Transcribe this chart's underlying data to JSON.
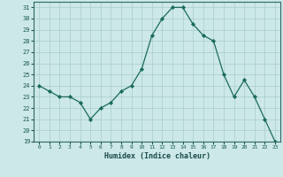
{
  "x": [
    0,
    1,
    2,
    3,
    4,
    5,
    6,
    7,
    8,
    9,
    10,
    11,
    12,
    13,
    14,
    15,
    16,
    17,
    18,
    19,
    20,
    21,
    22,
    23
  ],
  "y": [
    24,
    23.5,
    23,
    23,
    22.5,
    21,
    22,
    22.5,
    23.5,
    24,
    25.5,
    28.5,
    30,
    31,
    31,
    29.5,
    28.5,
    28,
    25,
    23,
    24.5,
    23,
    21,
    19
  ],
  "xlabel": "Humidex (Indice chaleur)",
  "xlim": [
    -0.5,
    23.5
  ],
  "ylim": [
    19,
    31.5
  ],
  "yticks": [
    19,
    20,
    21,
    22,
    23,
    24,
    25,
    26,
    27,
    28,
    29,
    30,
    31
  ],
  "xticks": [
    0,
    1,
    2,
    3,
    4,
    5,
    6,
    7,
    8,
    9,
    10,
    11,
    12,
    13,
    14,
    15,
    16,
    17,
    18,
    19,
    20,
    21,
    22,
    23
  ],
  "line_color": "#1a6b5a",
  "marker_color": "#1a6b5a",
  "bg_color": "#cce8e8",
  "grid_color": "#aacccc",
  "axis_color": "#336666",
  "tick_color": "#1a5a4a",
  "xlabel_color": "#1a4a4a"
}
